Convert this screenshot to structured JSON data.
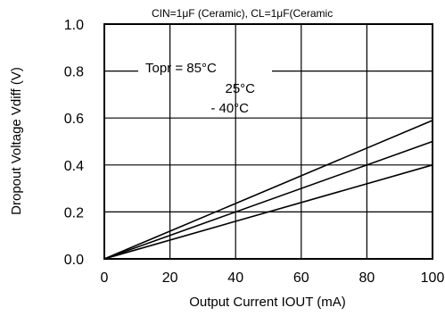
{
  "chart_data": {
    "type": "line",
    "title": "CIN=1μF (Ceramic), CL=1μF(Ceramic",
    "xlabel": "Output Current IOUT (mA)",
    "ylabel": "Dropout Voltage Vdiff (V)",
    "xlim": [
      0,
      100
    ],
    "ylim": [
      0,
      1.0
    ],
    "grid": true,
    "x_ticks": [
      "0",
      "20",
      "40",
      "60",
      "80",
      "100"
    ],
    "y_ticks": [
      "0.0",
      "0.2",
      "0.4",
      "0.6",
      "0.8",
      "1.0"
    ],
    "legend": {
      "placement": "top-left",
      "entries": [
        "Topr = 85°C",
        "25°C",
        "- 40°C"
      ]
    },
    "series": [
      {
        "name": "85°C",
        "x": [
          0,
          100
        ],
        "y": [
          0,
          0.59
        ]
      },
      {
        "name": "25°C",
        "x": [
          0,
          100
        ],
        "y": [
          0,
          0.5
        ]
      },
      {
        "name": "-40°C",
        "x": [
          0,
          100
        ],
        "y": [
          0,
          0.4
        ]
      }
    ]
  }
}
